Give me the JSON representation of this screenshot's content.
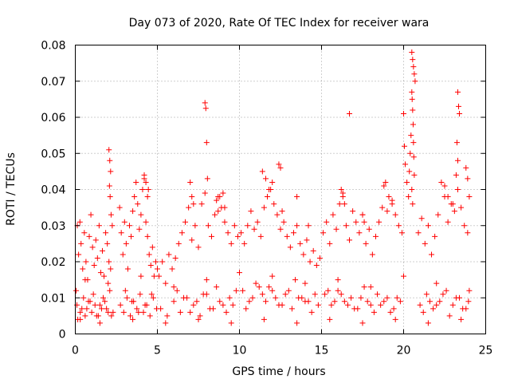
{
  "chart_data": {
    "type": "scatter",
    "title": "Day 073 of 2020, Rate Of TEC Index for receiver wara",
    "xlabel": "GPS time / hours",
    "ylabel": "ROTI / TECUs",
    "xlim": [
      0,
      25
    ],
    "ylim": [
      0,
      0.08
    ],
    "x_ticks": [
      0,
      5,
      10,
      15,
      20,
      25
    ],
    "y_ticks": [
      0,
      0.01,
      0.02,
      0.03,
      0.04,
      0.05,
      0.06,
      0.07,
      0.08
    ],
    "x_tick_labels": [
      "0",
      "5",
      "10",
      "15",
      "20",
      "25"
    ],
    "y_tick_labels": [
      "0",
      "0.01",
      "0.02",
      "0.03",
      "0.04",
      "0.05",
      "0.06",
      "0.07",
      "0.08"
    ],
    "grid": true,
    "marker": "+",
    "marker_color": "#ff0000",
    "series": [
      {
        "x": [
          0.05,
          0.12,
          0.2,
          0.28,
          0.35,
          0.45,
          0.55,
          0.65,
          0.75,
          0.85,
          0.95,
          1.05,
          1.15,
          1.25,
          1.35,
          1.45,
          1.55,
          1.65,
          1.75,
          1.85,
          1.95,
          2.05,
          2.15,
          2.25,
          0.1,
          0.3,
          0.5,
          0.7,
          0.9,
          1.1,
          1.3,
          1.5,
          1.7,
          1.9,
          2.1,
          2.3,
          0.15,
          0.4,
          0.6,
          0.8,
          1.0,
          1.2,
          1.4,
          1.6,
          1.8,
          2.0,
          2.2,
          2.05,
          2.1,
          2.15,
          2.08,
          2.12,
          2.18,
          2.7,
          2.8,
          2.9,
          3.0,
          3.1,
          3.2,
          3.3,
          3.4,
          3.5,
          3.6,
          3.7,
          3.8,
          3.9,
          4.0,
          4.1,
          4.2,
          4.3,
          4.4,
          4.5,
          4.6,
          4.7,
          4.8,
          4.9,
          5.0,
          2.75,
          2.95,
          3.15,
          3.35,
          3.55,
          3.75,
          3.95,
          4.15,
          4.35,
          4.55,
          4.75,
          4.95,
          3.05,
          3.45,
          3.85,
          4.25,
          4.65,
          4.2,
          4.3,
          4.4,
          4.45,
          5.1,
          5.3,
          5.5,
          5.7,
          5.9,
          6.1,
          6.3,
          6.5,
          6.7,
          6.9,
          7.1,
          7.3,
          7.5,
          7.7,
          7.9,
          8.1,
          8.3,
          8.5,
          8.7,
          8.9,
          9.1,
          9.3,
          9.5,
          9.7,
          9.9,
          5.2,
          5.6,
          6.0,
          6.4,
          6.8,
          7.2,
          7.6,
          8.0,
          8.4,
          8.8,
          9.2,
          9.6,
          6.2,
          6.6,
          7.0,
          7.4,
          7.8,
          8.2,
          8.6,
          9.0,
          9.4,
          9.8,
          7.0,
          7.1,
          7.2,
          7.9,
          7.95,
          8.0,
          8.05,
          8.6,
          8.7,
          8.8,
          9.0,
          9.1,
          10.1,
          10.3,
          10.5,
          10.7,
          10.9,
          11.1,
          11.3,
          11.5,
          11.7,
          11.9,
          12.1,
          12.3,
          12.5,
          12.7,
          12.9,
          13.1,
          13.3,
          13.5,
          13.7,
          13.9,
          14.1,
          14.3,
          14.5,
          14.7,
          14.9,
          10.2,
          10.6,
          11.0,
          11.4,
          11.8,
          12.2,
          12.6,
          13.0,
          13.4,
          13.8,
          14.2,
          14.6,
          10.4,
          10.8,
          11.2,
          11.6,
          12.0,
          12.4,
          12.8,
          13.2,
          13.6,
          14.0,
          14.4,
          14.8,
          11.4,
          11.6,
          11.8,
          12.0,
          12.4,
          12.5,
          12.6,
          13.5,
          14.2,
          15.1,
          15.3,
          15.5,
          15.7,
          15.9,
          16.1,
          16.3,
          16.5,
          16.7,
          16.9,
          17.1,
          17.3,
          17.5,
          17.7,
          17.9,
          18.1,
          18.3,
          18.5,
          18.7,
          18.9,
          19.1,
          19.3,
          19.5,
          19.7,
          19.9,
          15.2,
          15.6,
          16.0,
          16.4,
          16.8,
          17.2,
          17.6,
          18.0,
          18.4,
          18.8,
          19.2,
          19.6,
          15.4,
          15.8,
          16.2,
          16.6,
          17.0,
          17.4,
          17.8,
          18.2,
          18.6,
          19.0,
          19.4,
          19.8,
          16.2,
          16.3,
          16.4,
          16.7,
          17.5,
          17.6,
          18.8,
          19.0,
          19.3,
          20.0,
          20.05,
          20.1,
          20.2,
          20.3,
          20.35,
          20.4,
          20.45,
          20.5,
          20.55,
          20.6,
          20.65,
          20.7,
          20.5,
          20.52,
          20.55,
          20.58,
          20.6,
          20.62,
          20.65,
          20.5,
          20.55,
          20.9,
          21.1,
          21.3,
          21.5,
          21.7,
          21.9,
          22.1,
          22.3,
          22.5,
          22.7,
          22.9,
          23.1,
          23.3,
          23.5,
          23.7,
          23.9,
          21.0,
          21.4,
          21.8,
          22.2,
          22.6,
          23.0,
          23.4,
          23.8,
          21.2,
          21.6,
          22.0,
          22.4,
          22.8,
          23.2,
          23.6,
          23.95,
          22.5,
          22.7,
          23.0,
          23.2,
          23.3,
          23.35,
          23.4,
          23.25,
          23.3,
          23.8,
          23.9,
          24.0,
          0.3,
          1.5,
          3.5,
          5.5,
          7.5,
          9.5,
          11.5,
          13.5,
          15.5,
          17.5,
          19.5,
          21.5,
          23.5,
          0.6,
          2.0,
          4.0,
          6.0,
          8.0,
          10.0,
          12.0,
          14.0,
          16.0,
          18.0,
          20.0,
          22.0,
          24.0
        ],
        "y": [
          0.012,
          0.03,
          0.022,
          0.031,
          0.025,
          0.018,
          0.028,
          0.02,
          0.015,
          0.027,
          0.033,
          0.024,
          0.019,
          0.026,
          0.021,
          0.03,
          0.017,
          0.023,
          0.016,
          0.028,
          0.025,
          0.02,
          0.018,
          0.03,
          0.008,
          0.006,
          0.01,
          0.007,
          0.009,
          0.011,
          0.005,
          0.008,
          0.01,
          0.007,
          0.012,
          0.006,
          0.004,
          0.007,
          0.005,
          0.009,
          0.006,
          0.008,
          0.005,
          0.007,
          0.009,
          0.006,
          0.005,
          0.051,
          0.048,
          0.045,
          0.041,
          0.038,
          0.033,
          0.035,
          0.028,
          0.022,
          0.031,
          0.025,
          0.018,
          0.03,
          0.027,
          0.034,
          0.038,
          0.042,
          0.036,
          0.029,
          0.033,
          0.04,
          0.043,
          0.031,
          0.027,
          0.022,
          0.019,
          0.024,
          0.016,
          0.02,
          0.018,
          0.008,
          0.006,
          0.01,
          0.005,
          0.009,
          0.007,
          0.011,
          0.006,
          0.008,
          0.005,
          0.01,
          0.007,
          0.012,
          0.009,
          0.006,
          0.008,
          0.011,
          0.044,
          0.042,
          0.038,
          0.04,
          0.016,
          0.02,
          0.014,
          0.022,
          0.018,
          0.021,
          0.025,
          0.028,
          0.031,
          0.035,
          0.026,
          0.03,
          0.024,
          0.036,
          0.039,
          0.03,
          0.027,
          0.033,
          0.038,
          0.035,
          0.031,
          0.028,
          0.025,
          0.03,
          0.027,
          0.007,
          0.005,
          0.009,
          0.006,
          0.01,
          0.008,
          0.005,
          0.011,
          0.007,
          0.009,
          0.006,
          0.008,
          0.012,
          0.01,
          0.006,
          0.009,
          0.011,
          0.007,
          0.013,
          0.008,
          0.01,
          0.012,
          0.042,
          0.038,
          0.036,
          0.064,
          0.0625,
          0.053,
          0.043,
          0.037,
          0.034,
          0.038,
          0.039,
          0.035,
          0.028,
          0.025,
          0.03,
          0.034,
          0.029,
          0.031,
          0.027,
          0.035,
          0.038,
          0.04,
          0.036,
          0.033,
          0.029,
          0.031,
          0.027,
          0.024,
          0.028,
          0.03,
          0.025,
          0.022,
          0.026,
          0.02,
          0.023,
          0.019,
          0.021,
          0.012,
          0.009,
          0.014,
          0.011,
          0.013,
          0.01,
          0.008,
          0.012,
          0.015,
          0.01,
          0.009,
          0.011,
          0.007,
          0.01,
          0.013,
          0.009,
          0.012,
          0.008,
          0.011,
          0.007,
          0.01,
          0.009,
          0.006,
          0.008,
          0.045,
          0.043,
          0.04,
          0.042,
          0.047,
          0.046,
          0.034,
          0.038,
          0.03,
          0.028,
          0.031,
          0.025,
          0.033,
          0.029,
          0.036,
          0.039,
          0.03,
          0.026,
          0.034,
          0.031,
          0.028,
          0.033,
          0.025,
          0.029,
          0.022,
          0.027,
          0.031,
          0.035,
          0.042,
          0.038,
          0.036,
          0.033,
          0.03,
          0.028,
          0.011,
          0.008,
          0.012,
          0.009,
          0.01,
          0.007,
          0.013,
          0.008,
          0.011,
          0.009,
          0.006,
          0.01,
          0.012,
          0.009,
          0.011,
          0.008,
          0.007,
          0.01,
          0.009,
          0.006,
          0.008,
          0.01,
          0.007,
          0.009,
          0.04,
          0.038,
          0.036,
          0.061,
          0.033,
          0.031,
          0.041,
          0.034,
          0.037,
          0.061,
          0.052,
          0.047,
          0.042,
          0.038,
          0.045,
          0.05,
          0.055,
          0.078,
          0.076,
          0.074,
          0.072,
          0.07,
          0.067,
          0.065,
          0.062,
          0.058,
          0.053,
          0.049,
          0.044,
          0.04,
          0.036,
          0.028,
          0.032,
          0.025,
          0.03,
          0.022,
          0.027,
          0.033,
          0.042,
          0.038,
          0.031,
          0.036,
          0.034,
          0.04,
          0.035,
          0.03,
          0.028,
          0.008,
          0.011,
          0.007,
          0.009,
          0.012,
          0.008,
          0.01,
          0.007,
          0.006,
          0.009,
          0.008,
          0.011,
          0.005,
          0.01,
          0.007,
          0.009,
          0.041,
          0.038,
          0.036,
          0.044,
          0.067,
          0.063,
          0.061,
          0.053,
          0.048,
          0.046,
          0.043,
          0.038,
          0.004,
          0.003,
          0.004,
          0.003,
          0.004,
          0.003,
          0.004,
          0.003,
          0.004,
          0.003,
          0.004,
          0.003,
          0.004,
          0.015,
          0.014,
          0.016,
          0.013,
          0.015,
          0.017,
          0.016,
          0.014,
          0.015,
          0.013,
          0.016,
          0.014,
          0.012
        ]
      }
    ]
  }
}
